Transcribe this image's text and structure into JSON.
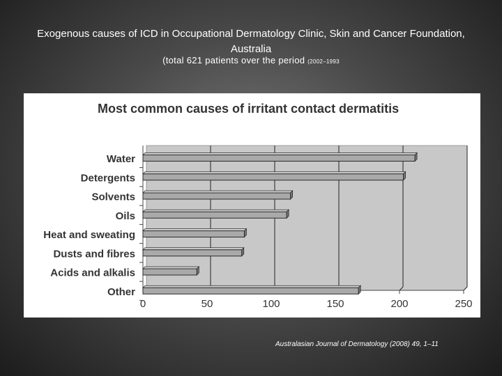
{
  "slide": {
    "title": "Exogenous causes of  ICD in Occupational Dermatology Clinic, Skin and Cancer Foundation, Australia",
    "subtitle_main": "(total 621 patients over the period ",
    "subtitle_small": "(2002–1993",
    "citation": "Australasian Journal of Dermatology (2008) 49, 1–11"
  },
  "chart_data": {
    "type": "bar",
    "orientation": "horizontal",
    "title": "Most common causes of irritant contact dermatitis",
    "categories": [
      "Water",
      "Detergents",
      "Solvents",
      "Oils",
      "Heat and sweating",
      "Dusts and fibres",
      "Acids and alkalis",
      "Other"
    ],
    "values": [
      212,
      203,
      115,
      112,
      79,
      77,
      42,
      168
    ],
    "xlim": [
      0,
      250
    ],
    "xticks": [
      "0",
      "50",
      "100",
      "150",
      "200",
      "250"
    ],
    "xlabel": "",
    "ylabel": "",
    "grid": true,
    "colors": {
      "bar": "#a9a9a9",
      "bar_top": "#d4d4d4",
      "bar_edge": "#2a2a2a",
      "plot_bg": "#c8c8c8",
      "grid": "#222222"
    }
  }
}
